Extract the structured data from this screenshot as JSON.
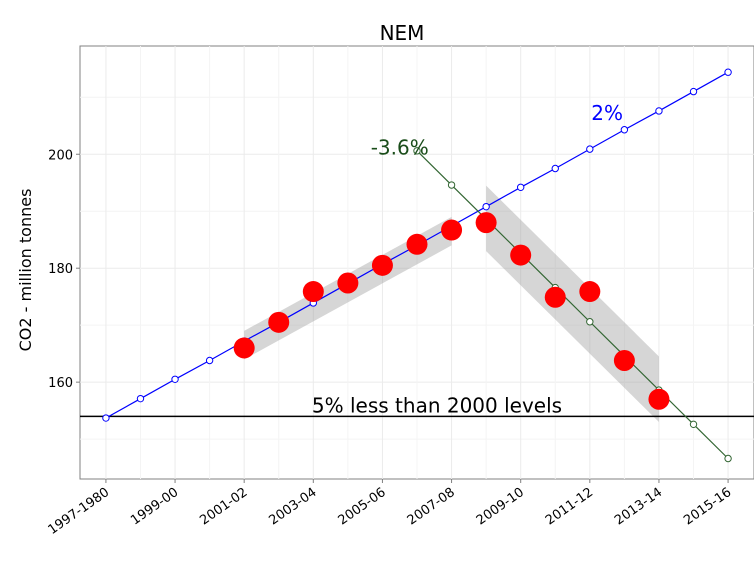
{
  "chart_data": {
    "type": "line",
    "title": "NEM",
    "xlabel": "",
    "ylabel": "CO2 - million tonnes",
    "x_tick_labels": [
      "1997-1980",
      "1999-00",
      "2001-02",
      "2003-04",
      "2005-06",
      "2007-08",
      "2009-10",
      "2011-12",
      "2013-14",
      "2015-16"
    ],
    "x_ticks": [
      1998,
      2000,
      2002,
      2004,
      2006,
      2008,
      2010,
      2012,
      2014,
      2016
    ],
    "xlim": [
      1997.25,
      2016.75
    ],
    "y_ticks": [
      160,
      180,
      200
    ],
    "ylim": [
      143,
      219
    ],
    "grid": true,
    "series": [
      {
        "color": "#0000ff",
        "x": [
          1998,
          1999,
          2000,
          2001,
          2002,
          2003,
          2004,
          2005,
          2006,
          2007,
          2008,
          2009,
          2010,
          2011,
          2012,
          2013,
          2014,
          2015,
          2016
        ],
        "values": [
          153.7,
          157.1,
          160.5,
          163.8,
          167.2,
          170.5,
          173.9,
          177.3,
          180.7,
          184.0,
          187.4,
          190.8,
          194.2,
          197.5,
          200.9,
          204.3,
          207.6,
          211.0,
          214.4
        ]
      },
      {
        "color": "#336633",
        "x": [
          2007,
          2008,
          2009,
          2010,
          2011,
          2012,
          2013,
          2014,
          2015,
          2016
        ],
        "values": [
          200.6,
          194.6,
          188.6,
          182.6,
          176.6,
          170.6,
          164.6,
          158.6,
          152.6,
          146.6
        ]
      },
      {
        "color": "#ff0000",
        "x": [
          2002,
          2003,
          2004,
          2005,
          2006,
          2007,
          2008,
          2009,
          2010,
          2011,
          2012,
          2013,
          2014
        ],
        "values": [
          166.0,
          170.5,
          175.9,
          177.4,
          180.5,
          184.2,
          186.7,
          188.0,
          182.3,
          174.9,
          175.9,
          163.8,
          157.0
        ]
      }
    ],
    "confidence_bands": [
      {
        "x": [
          2002,
          2008
        ],
        "upper": [
          169.0,
          189.0
        ],
        "lower": [
          164.0,
          184.0
        ]
      },
      {
        "x": [
          2009,
          2014
        ],
        "upper": [
          194.5,
          164.5
        ],
        "lower": [
          183.0,
          153.0
        ]
      }
    ],
    "reference_line": {
      "y": 154,
      "label": "5% less than 2000 levels"
    },
    "annotations": [
      {
        "text": "2%",
        "x": 2012.5,
        "y": 206,
        "color": "#0000ff"
      },
      {
        "text": "-3.6%",
        "x": 2006.5,
        "y": 200,
        "color": "#1a4d1a"
      }
    ]
  }
}
